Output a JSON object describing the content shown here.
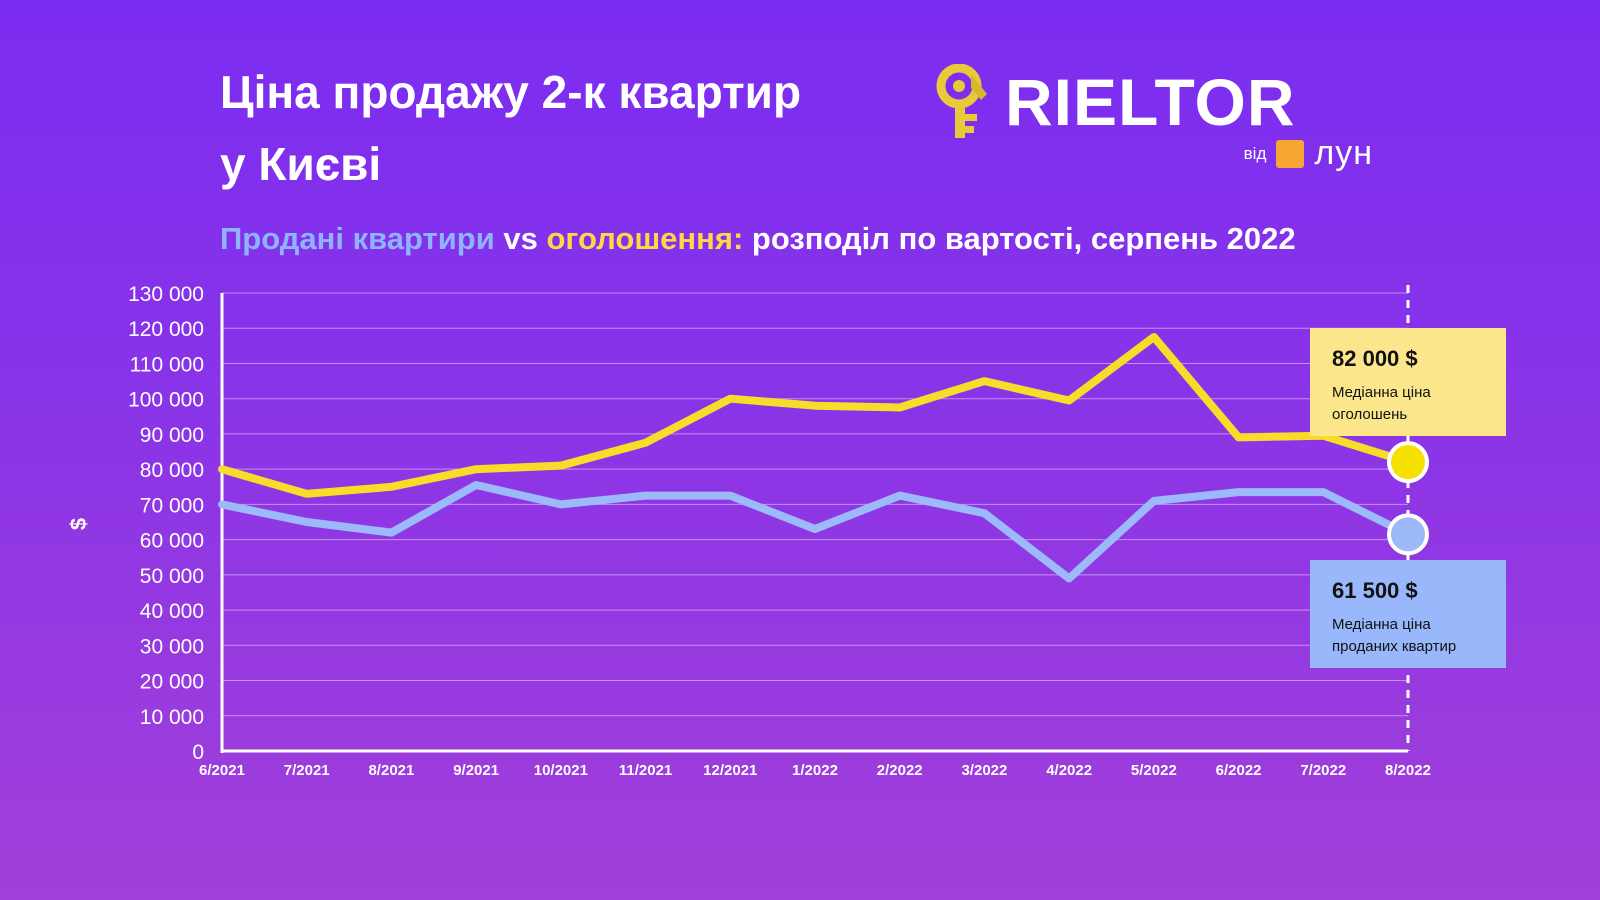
{
  "header": {
    "title_line1": "Ціна продажу 2-к квартир",
    "title_line2": "у Києві"
  },
  "logo": {
    "brand": "RIELTOR",
    "by": "від",
    "partner": "лун",
    "colors": {
      "key": "#e8c93a",
      "square": "#f6a632"
    },
    "icon": "key-icon"
  },
  "subtitle": {
    "part_sold": "Продані квартири",
    "part_vs": " vs ",
    "part_listings": "оголошення:",
    "part_rest": " розподіл по вартості, серпень 2022"
  },
  "chart_data": {
    "type": "line",
    "ylabel": "$",
    "ylim": [
      0,
      130000
    ],
    "yticks": [
      0,
      10000,
      20000,
      30000,
      40000,
      50000,
      60000,
      70000,
      80000,
      90000,
      100000,
      110000,
      120000,
      130000
    ],
    "ytick_labels": [
      "0",
      "10 000",
      "20 000",
      "30 000",
      "40 000",
      "50 000",
      "60 000",
      "70 000",
      "80 000",
      "90 000",
      "100 000",
      "110 000",
      "120 000",
      "130 000"
    ],
    "categories": [
      "6/2021",
      "7/2021",
      "8/2021",
      "9/2021",
      "10/2021",
      "11/2021",
      "12/2021",
      "1/2022",
      "2/2022",
      "3/2022",
      "4/2022",
      "5/2022",
      "6/2022",
      "7/2022",
      "8/2022"
    ],
    "grid": true,
    "series": [
      {
        "name": "оголошення",
        "color": "#f7dc2a",
        "values": [
          80000,
          73000,
          75000,
          80000,
          81000,
          87500,
          100000,
          98000,
          97500,
          105000,
          99500,
          117500,
          89000,
          89500,
          82000
        ]
      },
      {
        "name": "Продані квартири",
        "color": "#9cb9f9",
        "values": [
          70000,
          65000,
          62000,
          75500,
          70000,
          72500,
          72500,
          63000,
          72500,
          67500,
          49000,
          71000,
          73500,
          73500,
          61500
        ]
      }
    ],
    "annotations": [
      {
        "value": "82 000 $",
        "line1": "Медіанна ціна",
        "line2": "оголошень"
      },
      {
        "value": "61 500 $",
        "line1": "Медіанна ціна",
        "line2": "проданих квартир"
      }
    ]
  }
}
